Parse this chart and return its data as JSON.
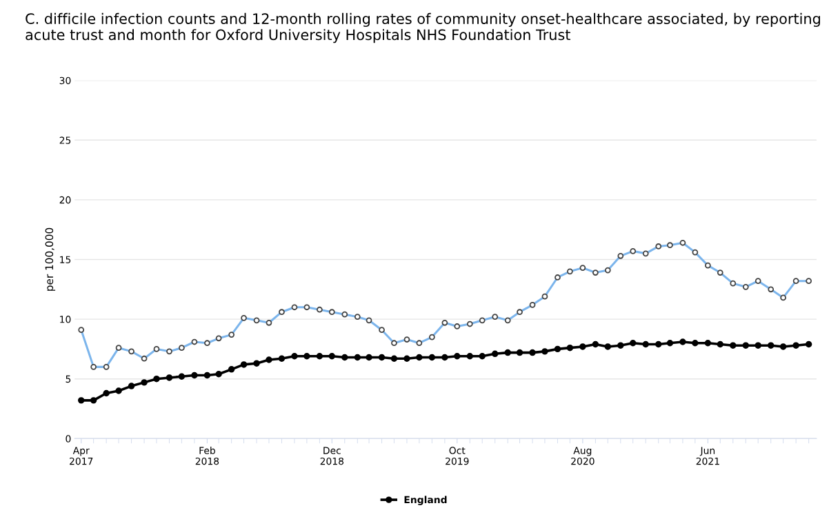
{
  "chart_data": {
    "type": "line",
    "title": "C. difficile infection counts and 12-month rolling rates of community onset-healthcare associated, by reporting acute trust and month for Oxford University Hospitals NHS Foundation Trust",
    "ylabel": "per 100,000",
    "x": [
      "2017-04",
      "2017-05",
      "2017-06",
      "2017-07",
      "2017-08",
      "2017-09",
      "2017-10",
      "2017-11",
      "2017-12",
      "2018-01",
      "2018-02",
      "2018-03",
      "2018-04",
      "2018-05",
      "2018-06",
      "2018-07",
      "2018-08",
      "2018-09",
      "2018-10",
      "2018-11",
      "2018-12",
      "2019-01",
      "2019-02",
      "2019-03",
      "2019-04",
      "2019-05",
      "2019-06",
      "2019-07",
      "2019-08",
      "2019-09",
      "2019-10",
      "2019-11",
      "2019-12",
      "2020-01",
      "2020-02",
      "2020-03",
      "2020-04",
      "2020-05",
      "2020-06",
      "2020-07",
      "2020-08",
      "2020-09",
      "2020-10",
      "2020-11",
      "2020-12",
      "2021-01",
      "2021-02",
      "2021-03",
      "2021-04",
      "2021-05",
      "2021-06",
      "2021-07",
      "2021-08",
      "2021-09",
      "2021-10",
      "2021-11",
      "2021-12",
      "2022-01",
      "2022-02"
    ],
    "series": [
      {
        "color": "#7cb5ec",
        "marker": "circle",
        "values": [
          9.1,
          6.0,
          6.0,
          7.6,
          7.3,
          6.7,
          7.5,
          7.3,
          7.6,
          8.1,
          8.0,
          8.4,
          8.7,
          10.1,
          9.9,
          9.7,
          10.6,
          11.0,
          11.0,
          10.8,
          10.6,
          10.4,
          10.2,
          9.9,
          9.1,
          8.0,
          8.3,
          8.0,
          8.5,
          9.7,
          9.4,
          9.6,
          9.9,
          10.2,
          9.9,
          10.6,
          11.2,
          11.9,
          13.5,
          14.0,
          14.3,
          13.9,
          14.1,
          15.3,
          15.7,
          15.5,
          16.1,
          16.2,
          16.4,
          15.6,
          14.5,
          13.9,
          13.0,
          12.7,
          13.2,
          12.5,
          11.8,
          13.2,
          13.2
        ]
      },
      {
        "name": "England",
        "color": "#000000",
        "marker": "circle",
        "values": [
          3.2,
          3.2,
          3.8,
          4.0,
          4.4,
          4.7,
          5.0,
          5.1,
          5.2,
          5.3,
          5.3,
          5.4,
          5.8,
          6.2,
          6.3,
          6.6,
          6.7,
          6.9,
          6.9,
          6.9,
          6.9,
          6.8,
          6.8,
          6.8,
          6.8,
          6.7,
          6.7,
          6.8,
          6.8,
          6.8,
          6.9,
          6.9,
          6.9,
          7.1,
          7.2,
          7.2,
          7.2,
          7.3,
          7.5,
          7.6,
          7.7,
          7.9,
          7.7,
          7.8,
          8.0,
          7.9,
          7.9,
          8.0,
          8.1,
          8.0,
          8.0,
          7.9,
          7.8,
          7.8,
          7.8,
          7.8,
          7.7,
          7.8,
          7.9
        ]
      }
    ],
    "xlim": [
      "2017-03-16",
      "2022-02-20"
    ],
    "xticks": [
      {
        "value": "2017-04",
        "label": "Apr\n2017"
      },
      {
        "value": "2018-02",
        "label": "Feb\n2018"
      },
      {
        "value": "2018-12",
        "label": "Dec\n2018"
      },
      {
        "value": "2019-10",
        "label": "Oct\n2019"
      },
      {
        "value": "2020-08",
        "label": "Aug\n2020"
      },
      {
        "value": "2021-06",
        "label": "Jun\n2021"
      }
    ],
    "ylim": [
      0,
      30
    ],
    "yticks": [
      0,
      5,
      10,
      15,
      20,
      25,
      30
    ],
    "grid": "y",
    "legend": "bottom",
    "line_style": "solid"
  }
}
